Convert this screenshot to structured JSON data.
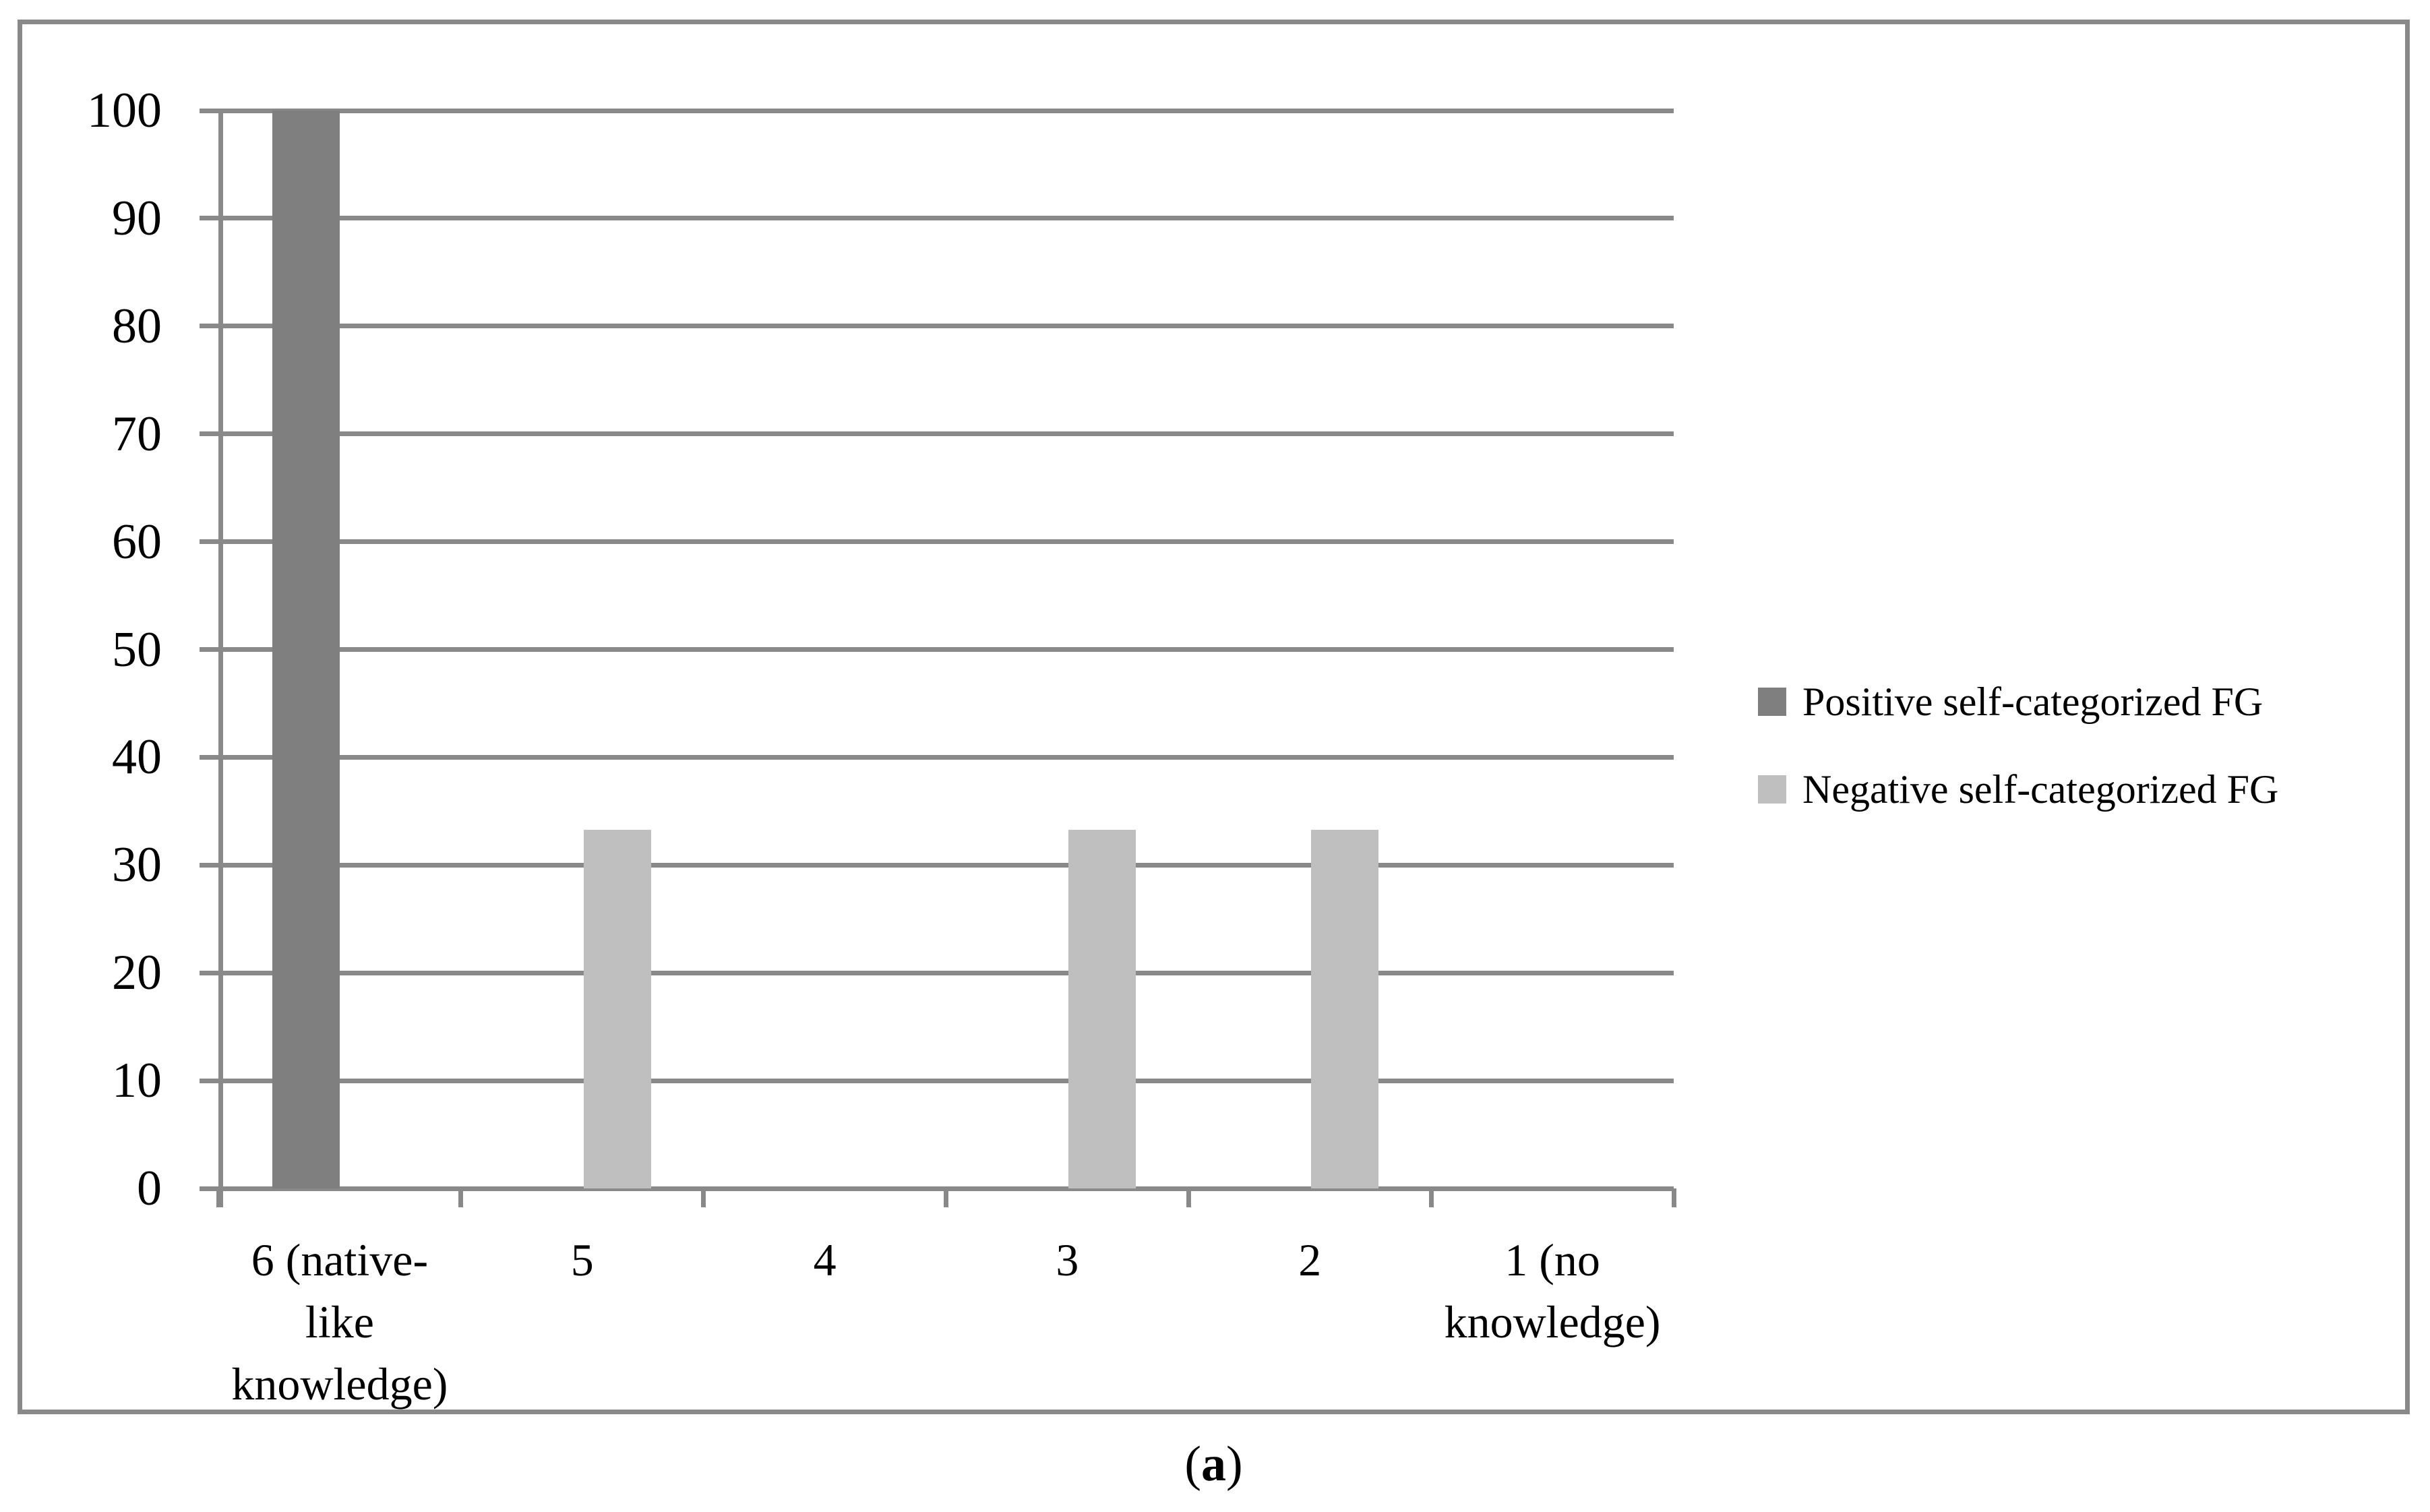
{
  "chart_data": {
    "type": "bar",
    "title": "",
    "xlabel": "",
    "ylabel": "",
    "categories": [
      "6 (native-\nlike\nknowledge)",
      "5",
      "4",
      "3",
      "2",
      "1 (no\nknowledge)"
    ],
    "series": [
      {
        "name": "Positive self-categorized FG",
        "color": "#7F7F7F",
        "values": [
          100,
          0,
          0,
          0,
          0,
          0
        ]
      },
      {
        "name": "Negative self-categorized FG",
        "color": "#BFBFBF",
        "values": [
          0,
          33.3,
          0,
          33.3,
          33.3,
          0
        ]
      }
    ],
    "ylim": [
      0,
      100
    ],
    "yticks": [
      0,
      10,
      20,
      30,
      40,
      50,
      60,
      70,
      80,
      90,
      100
    ],
    "grid": "horizontal",
    "legend_position": "right"
  },
  "caption": {
    "open": "(",
    "letter": "a",
    "close": ")"
  },
  "colors": {
    "axis": "#898989",
    "frame_border": "#898989",
    "background": "#FFFFFF",
    "text": "#000000"
  }
}
